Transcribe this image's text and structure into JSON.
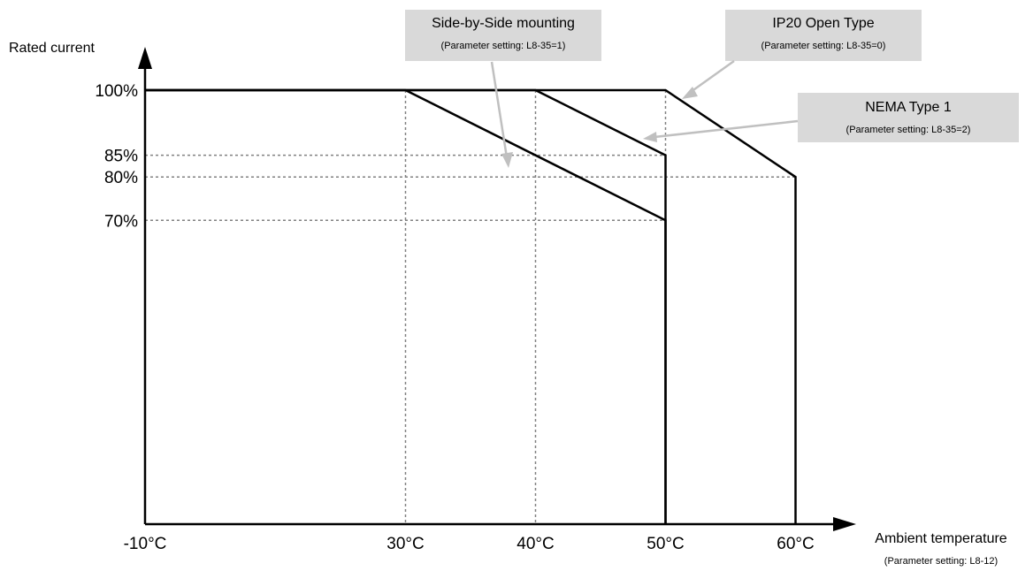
{
  "chart_data": {
    "type": "line",
    "ylabel": "Rated current",
    "xlabel": "Ambient temperature",
    "xlabel_note": "(Parameter setting: L8-12)",
    "x_ticks": [
      {
        "value": -10,
        "label": "-10°C"
      },
      {
        "value": 30,
        "label": "30°C"
      },
      {
        "value": 40,
        "label": "40°C"
      },
      {
        "value": 50,
        "label": "50°C"
      },
      {
        "value": 60,
        "label": "60°C"
      }
    ],
    "y_ticks": [
      {
        "value": 100,
        "label": "100%"
      },
      {
        "value": 85,
        "label": "85%"
      },
      {
        "value": 80,
        "label": "80%"
      },
      {
        "value": 70,
        "label": "70%"
      }
    ],
    "xlim": [
      -10,
      65
    ],
    "ylim": [
      0,
      105
    ],
    "series": [
      {
        "name": "Side-by-Side mounting",
        "note": "(Parameter setting: L8-35=1)",
        "points": [
          [
            -10,
            100
          ],
          [
            30,
            100
          ],
          [
            50,
            70
          ],
          [
            50,
            0
          ]
        ]
      },
      {
        "name": "NEMA Type 1",
        "note": "(Parameter setting: L8-35=2)",
        "points": [
          [
            -10,
            100
          ],
          [
            40,
            100
          ],
          [
            50,
            85
          ],
          [
            50,
            0
          ]
        ]
      },
      {
        "name": "IP20 Open Type",
        "note": "(Parameter setting: L8-35=0)",
        "points": [
          [
            -10,
            100
          ],
          [
            50,
            100
          ],
          [
            60,
            80
          ],
          [
            60,
            0
          ]
        ]
      }
    ],
    "colors": {
      "line": "#000000",
      "gridline": "#808080",
      "callout_box": "#d9d9d9",
      "callout_arrow": "#c0c0c0"
    }
  }
}
